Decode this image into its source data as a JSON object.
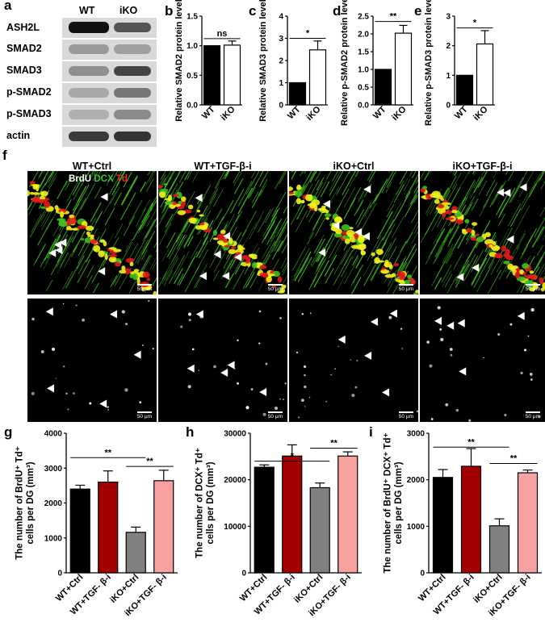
{
  "panel_letters": {
    "a": "a",
    "b": "b",
    "c": "c",
    "d": "d",
    "e": "e",
    "f": "f",
    "g": "g",
    "h": "h",
    "i": "i"
  },
  "blot": {
    "columns": [
      "WT",
      "iKO"
    ],
    "rows": [
      "ASH2L",
      "SMAD2",
      "SMAD3",
      "p-SMAD2",
      "p-SMAD3",
      "actin"
    ]
  },
  "micrographs": {
    "titles": [
      "WT+Ctrl",
      "WT+TGF-β-i",
      "iKO+Ctrl",
      "iKO+TGF-β-i"
    ],
    "stain_labels": [
      {
        "text": "BrdU",
        "color": "#ffffff"
      },
      {
        "text": "DCX",
        "color": "#2ecc2e"
      },
      {
        "text": "Td",
        "color": "#ff2222"
      }
    ],
    "scale_text": "50 μm"
  },
  "colors": {
    "black": "#000000",
    "white": "#ffffff",
    "darkred": "#a30000",
    "gray": "#808080",
    "pink": "#f7a1a1",
    "green": "#3fbf1f",
    "red": "#e31a1a",
    "yellow": "#f2f21a"
  },
  "chart_data": [
    {
      "id": "b",
      "type": "bar",
      "ylabel": "Relative SMAD2 protein level",
      "categories": [
        "WT",
        "iKO"
      ],
      "values": [
        1.0,
        1.01
      ],
      "errors": [
        0,
        0.07
      ],
      "fills": [
        "#000000",
        "#ffffff"
      ],
      "ylim": [
        0,
        1.5
      ],
      "yticks": [
        "0.0",
        "0.5",
        "1.0",
        "1.5"
      ],
      "sig": [
        {
          "from": 0,
          "to": 1,
          "label": "ns",
          "y": 1.12
        }
      ]
    },
    {
      "id": "c",
      "type": "bar",
      "ylabel": "Relative SMAD3 protein level",
      "categories": [
        "WT",
        "iKO"
      ],
      "values": [
        1.0,
        2.48
      ],
      "errors": [
        0,
        0.4
      ],
      "fills": [
        "#000000",
        "#ffffff"
      ],
      "ylim": [
        0,
        4
      ],
      "yticks": [
        "0",
        "1",
        "2",
        "3",
        "4"
      ],
      "sig": [
        {
          "from": 0,
          "to": 1,
          "label": "*",
          "y": 3.0
        }
      ]
    },
    {
      "id": "d",
      "type": "bar",
      "ylabel": "Relative p-SMAD2 protein level",
      "categories": [
        "WT",
        "iKO"
      ],
      "values": [
        1.0,
        2.02
      ],
      "errors": [
        0,
        0.22
      ],
      "fills": [
        "#000000",
        "#ffffff"
      ],
      "ylim": [
        0,
        2.5
      ],
      "yticks": [
        "0.0",
        "0.5",
        "1.0",
        "1.5",
        "2.0",
        "2.5"
      ],
      "sig": [
        {
          "from": 0,
          "to": 1,
          "label": "**",
          "y": 2.35
        }
      ]
    },
    {
      "id": "e",
      "type": "bar",
      "ylabel": "Relative p-SMAD3 protein level",
      "categories": [
        "WT",
        "iKO"
      ],
      "values": [
        1.0,
        2.06
      ],
      "errors": [
        0,
        0.45
      ],
      "fills": [
        "#000000",
        "#ffffff"
      ],
      "ylim": [
        0,
        3
      ],
      "yticks": [
        "0",
        "1",
        "2",
        "3"
      ],
      "sig": [
        {
          "from": 0,
          "to": 1,
          "label": "*",
          "y": 2.6
        }
      ]
    },
    {
      "id": "g",
      "type": "bar",
      "ylabel": "The number of BrdU⁺ Td⁺ cells per DG (mm³)",
      "categories": [
        "WT+Ctrl",
        "WT+TGF- β-i",
        "iKO+Ctrl",
        "iKO+TGF- β-i"
      ],
      "values": [
        2400,
        2600,
        1160,
        2640
      ],
      "errors": [
        110,
        320,
        150,
        300
      ],
      "fills": [
        "#000000",
        "#a30000",
        "#808080",
        "#f7a1a1"
      ],
      "ylim": [
        0,
        4000
      ],
      "yticks": [
        "0",
        "1000",
        "2000",
        "3000",
        "4000"
      ],
      "sig": [
        {
          "from": 0,
          "to": 2,
          "label": "**",
          "y": 3300
        },
        {
          "from": 2,
          "to": 3,
          "label": "**",
          "y": 3050
        }
      ]
    },
    {
      "id": "h",
      "type": "bar",
      "ylabel": "The number of DCX⁺ Td⁺ cells per DG (mm³)",
      "categories": [
        "WT+Ctrl",
        "WT+TGF- β-i",
        "iKO+Ctrl",
        "iKO+TGF- β-i"
      ],
      "values": [
        22700,
        25100,
        18300,
        25100
      ],
      "errors": [
        500,
        2400,
        1000,
        900
      ],
      "fills": [
        "#000000",
        "#a30000",
        "#808080",
        "#f7a1a1"
      ],
      "ylim": [
        0,
        30000
      ],
      "yticks": [
        "0",
        "10000",
        "20000",
        "30000"
      ],
      "sig": [
        {
          "from": 0,
          "to": 2,
          "label": "*",
          "y": 24000
        },
        {
          "from": 2,
          "to": 3,
          "label": "**",
          "y": 26800
        }
      ]
    },
    {
      "id": "i",
      "type": "bar",
      "ylabel": "The number of BrdU⁺ DCX⁺ Td⁺ cells per DG (mm³)",
      "categories": [
        "WT+Ctrl",
        "WT+TGF- β-i",
        "iKO+Ctrl",
        "iKO+TGF- β-i"
      ],
      "values": [
        2050,
        2290,
        1010,
        2150
      ],
      "errors": [
        170,
        380,
        150,
        60
      ],
      "fills": [
        "#000000",
        "#a30000",
        "#808080",
        "#f7a1a1"
      ],
      "ylim": [
        0,
        3000
      ],
      "yticks": [
        "0",
        "1000",
        "2000",
        "3000"
      ],
      "sig": [
        {
          "from": 0,
          "to": 2,
          "label": "**",
          "y": 2700
        },
        {
          "from": 2,
          "to": 3,
          "label": "**",
          "y": 2350
        }
      ]
    }
  ]
}
